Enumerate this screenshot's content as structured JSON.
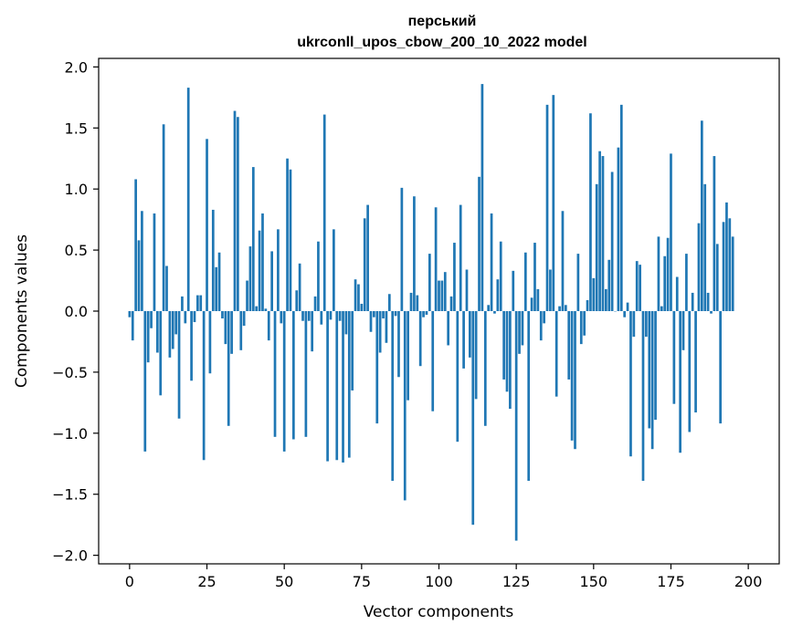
{
  "chart_data": {
    "type": "bar",
    "title_line1": "перський",
    "title_line2": "ukrconll_upos_cbow_200_10_2022 model",
    "xlabel": "Vector components",
    "ylabel": "Components values",
    "xlim": [
      -10,
      210
    ],
    "ylim": [
      -2.07,
      2.07
    ],
    "xticks": [
      0,
      25,
      50,
      75,
      100,
      125,
      150,
      175,
      200
    ],
    "yticks": [
      -2.0,
      -1.5,
      -1.0,
      -0.5,
      0.0,
      0.5,
      1.0,
      1.5,
      2.0
    ],
    "xtick_labels": [
      "0",
      "25",
      "50",
      "75",
      "100",
      "125",
      "150",
      "175",
      "200"
    ],
    "ytick_labels": [
      "−2.0",
      "−1.5",
      "−1.0",
      "−0.5",
      "0.0",
      "0.5",
      "1.0",
      "1.5",
      "2.0"
    ],
    "bar_color": "#1f77b4",
    "values": [
      -0.05,
      -0.24,
      1.08,
      0.58,
      0.82,
      -1.15,
      -0.42,
      -0.14,
      0.8,
      -0.34,
      -0.69,
      1.53,
      0.37,
      -0.38,
      -0.31,
      -0.19,
      -0.88,
      0.12,
      -0.1,
      1.83,
      -0.57,
      -0.09,
      0.13,
      0.13,
      -1.22,
      1.41,
      -0.51,
      0.83,
      0.36,
      0.48,
      -0.06,
      -0.27,
      -0.94,
      -0.35,
      1.64,
      1.59,
      -0.32,
      -0.12,
      0.25,
      0.53,
      1.18,
      0.04,
      0.66,
      0.8,
      0.02,
      -0.24,
      0.49,
      -1.03,
      0.67,
      -0.1,
      -1.15,
      1.25,
      1.16,
      -1.05,
      0.17,
      0.39,
      -0.08,
      -1.03,
      -0.08,
      -0.33,
      0.12,
      0.57,
      -0.11,
      1.61,
      -1.23,
      -0.07,
      0.67,
      -1.22,
      -0.08,
      -1.24,
      -0.19,
      -1.2,
      -0.65,
      0.26,
      0.22,
      0.06,
      0.76,
      0.87,
      -0.17,
      -0.05,
      -0.92,
      -0.34,
      -0.06,
      -0.26,
      0.14,
      -1.39,
      -0.04,
      -0.54,
      1.01,
      -1.55,
      -0.73,
      0.15,
      0.94,
      0.13,
      -0.45,
      -0.05,
      -0.03,
      0.47,
      -0.82,
      0.85,
      0.25,
      0.25,
      0.32,
      -0.28,
      0.12,
      0.56,
      -1.07,
      0.87,
      -0.47,
      0.34,
      -0.38,
      -1.75,
      -0.72,
      1.1,
      1.86,
      -0.94,
      0.05,
      0.8,
      -0.02,
      0.26,
      0.57,
      -0.56,
      -0.66,
      -0.8,
      0.33,
      -1.88,
      -0.35,
      -0.28,
      0.48,
      -1.39,
      0.11,
      0.56,
      0.18,
      -0.24,
      -0.1,
      1.69,
      0.34,
      1.77,
      -0.7,
      0.04,
      0.82,
      0.05,
      -0.56,
      -1.06,
      -1.13,
      0.47,
      -0.27,
      -0.2,
      0.09,
      1.62,
      0.27,
      1.04,
      1.31,
      1.27,
      0.18,
      0.42,
      1.14,
      0.0,
      1.34,
      1.69,
      -0.05,
      0.07,
      -1.19,
      -0.21,
      0.41,
      0.38,
      -1.39,
      -0.21,
      -0.96,
      -1.13,
      -0.89,
      0.61,
      0.04,
      0.45,
      0.6,
      1.29,
      -0.76,
      0.28,
      -1.16,
      -0.32,
      0.47,
      -0.99,
      0.15,
      -0.83,
      0.72,
      1.56,
      1.04,
      0.15,
      -0.02,
      1.27,
      0.55,
      -0.92,
      0.73,
      0.89,
      0.76,
      0.61
    ]
  }
}
